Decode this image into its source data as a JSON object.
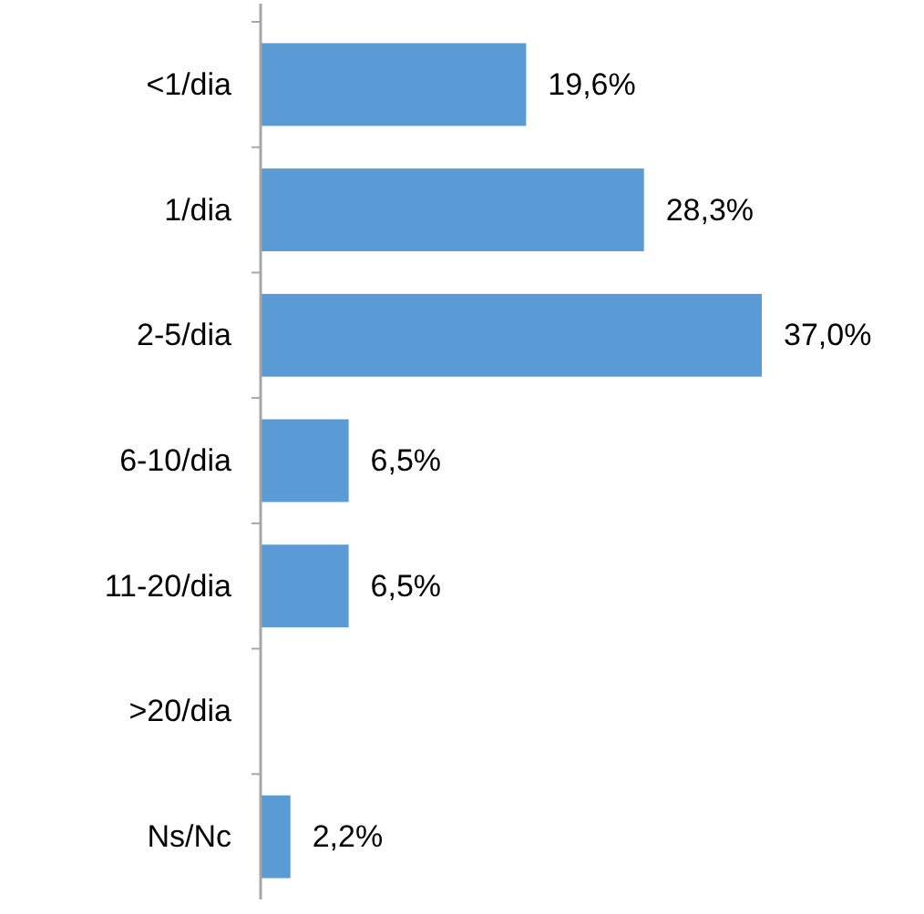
{
  "chart_data": {
    "type": "bar",
    "orientation": "horizontal",
    "categories": [
      "<1/dia",
      "1/dia",
      "2-5/dia",
      "6-10/dia",
      "11-20/dia",
      ">20/dia",
      "Ns/Nc"
    ],
    "values": [
      19.6,
      28.3,
      37.0,
      6.5,
      6.5,
      0,
      2.2
    ],
    "value_labels": [
      "19,6%",
      "28,3%",
      "37,0%",
      "6,5%",
      "6,5%",
      null,
      "2,2%"
    ],
    "color": "#5b9bd5"
  }
}
